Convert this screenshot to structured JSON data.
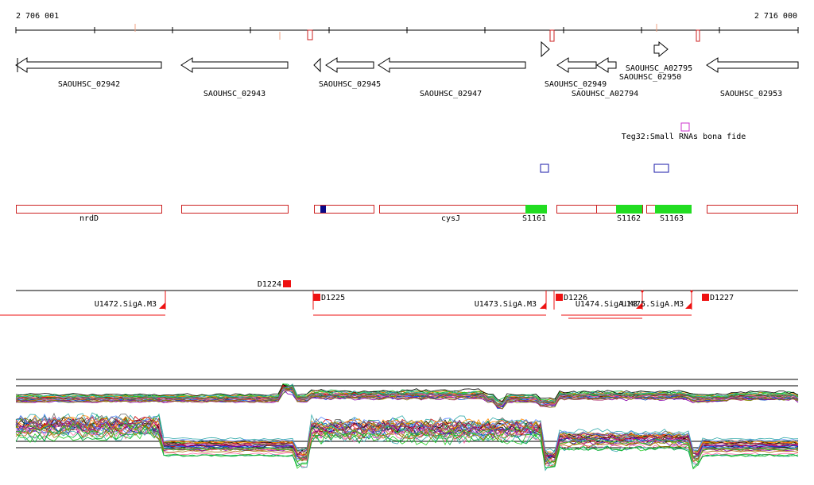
{
  "coordinates": {
    "start_label": "2 706 001",
    "end_label": "2 716 000"
  },
  "genes": [
    {
      "id": "SAOUHSC_02942",
      "strand": "-"
    },
    {
      "id": "SAOUHSC_02943",
      "strand": "-"
    },
    {
      "id": "",
      "strand": "-"
    },
    {
      "id": "SAOUHSC_02945",
      "strand": "-"
    },
    {
      "id": "SAOUHSC_02947",
      "strand": "-"
    },
    {
      "id": "",
      "strand": "+"
    },
    {
      "id": "SAOUHSC_02949",
      "strand": "-"
    },
    {
      "id": "SAOUHSC_02950",
      "strand": "-"
    },
    {
      "id": "SAOUHSC_A02794",
      "strand": "-"
    },
    {
      "id": "SAOUHSC_A02795",
      "strand": "+"
    },
    {
      "id": "SAOUHSC_02953",
      "strand": "-"
    }
  ],
  "srna": {
    "label": "Teg32:Small RNAs bona fide",
    "color": "#cc33cc"
  },
  "blue_boxes_color": "#1a1aaa",
  "annotations": {
    "outline_color": "#cc2222",
    "fill_color": "#22dd22",
    "labels": [
      "nrdD",
      "cysJ",
      "S1161",
      "S1162",
      "S1163"
    ]
  },
  "promoters": {
    "color": "#ee1111",
    "downshifts": [
      "D1224",
      "D1225",
      "D1226",
      "D1227"
    ],
    "units": [
      "U1472.SigA.M3",
      "U1473.SigA.M3",
      "U1474.SigA.M3",
      "U1475.SigA.M3"
    ]
  },
  "expression_palette": [
    "#000000",
    "#cc0000",
    "#0044cc",
    "#00aa33",
    "#aa6600",
    "#8800aa",
    "#ff66aa",
    "#33aaaa",
    "#888800",
    "#666666",
    "#ff8800",
    "#5588ff",
    "#22cc22",
    "#aa2266"
  ]
}
